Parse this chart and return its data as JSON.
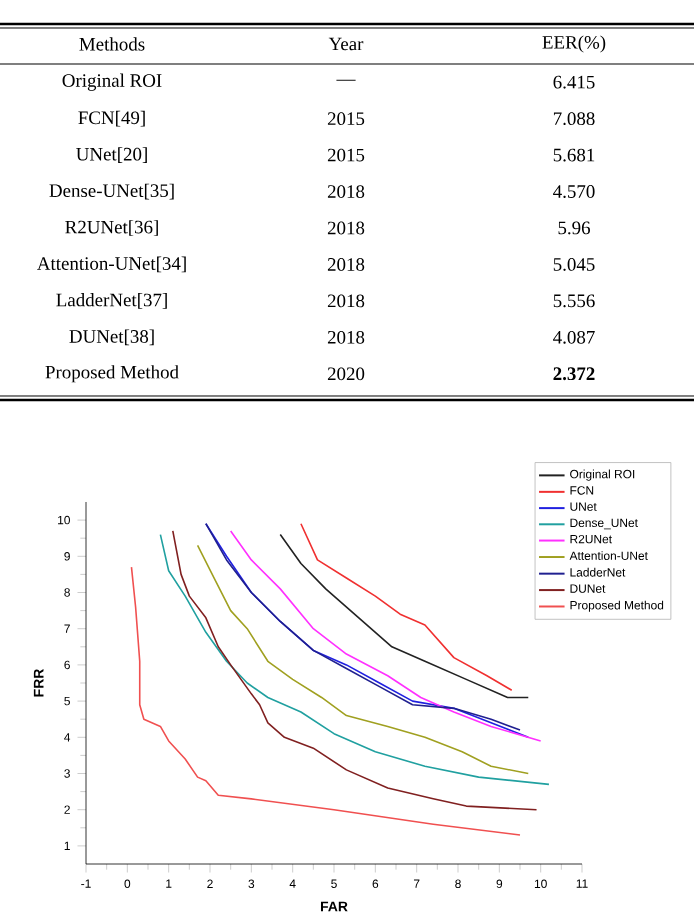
{
  "chart_data": [
    {
      "type": "other",
      "xlabel": "Methods",
      "categories": [
        "Original ROI",
        "FCN[49]",
        "UNet[20]",
        "Dense-UNet[35]",
        "R2UNet[36]",
        "Attention-UNet[34]",
        "LadderNet[37]",
        "DUNet[38]",
        "Proposed Method"
      ],
      "series": [
        {
          "name": "Year",
          "values": [
            null,
            2015,
            2015,
            2018,
            2018,
            2018,
            2018,
            2018,
            2020
          ],
          "value_labels": [
            "—",
            "2015",
            "2015",
            "2018",
            "2018",
            "2018",
            "2018",
            "2018",
            "2020"
          ]
        },
        {
          "name": "EER(%)",
          "values": [
            6.415,
            7.088,
            5.681,
            4.57,
            5.96,
            5.045,
            5.556,
            4.087,
            2.372
          ],
          "value_labels": [
            "6.415",
            "7.088",
            "5.681",
            "4.570",
            "5.96",
            "5.045",
            "5.556",
            "4.087",
            "**2.372**"
          ]
        }
      ]
    },
    {
      "type": "line",
      "xlabel": "FAR",
      "ylabel": "FRR",
      "xlim": [
        -1,
        11
      ],
      "ylim": [
        0.5,
        10.5
      ],
      "xticks": [
        -1,
        0,
        1,
        2,
        3,
        4,
        5,
        6,
        7,
        8,
        9,
        10,
        11
      ],
      "yticks": [
        1,
        2,
        3,
        4,
        5,
        6,
        7,
        8,
        9,
        10
      ],
      "legend": "top right",
      "series": [
        {
          "name": "Original ROI",
          "color": "#222222",
          "x": [
            3.7,
            4.2,
            4.8,
            5.6,
            6.4,
            7.2,
            8.2,
            9.2,
            9.7
          ],
          "values": [
            9.6,
            8.8,
            8.1,
            7.3,
            6.5,
            6.1,
            5.6,
            5.1,
            5.1
          ]
        },
        {
          "name": "FCN",
          "color": "#f03030",
          "x": [
            4.2,
            4.6,
            5.3,
            6.0,
            6.6,
            7.2,
            7.9,
            8.7,
            9.3
          ],
          "values": [
            9.9,
            8.9,
            8.4,
            7.9,
            7.4,
            7.1,
            6.2,
            5.7,
            5.3
          ]
        },
        {
          "name": "UNet",
          "color": "#2020e0",
          "x": [
            1.9,
            2.4,
            3.0,
            3.7,
            4.5,
            5.3,
            6.1,
            6.9,
            7.9,
            8.8,
            9.7
          ],
          "values": [
            9.9,
            9.0,
            8.0,
            7.2,
            6.4,
            6.0,
            5.5,
            5.0,
            4.8,
            4.4,
            4.0
          ]
        },
        {
          "name": "Dense_UNet",
          "color": "#20a0a0",
          "x": [
            0.8,
            1.0,
            1.4,
            1.9,
            2.4,
            2.9,
            3.4,
            4.2,
            5.0,
            6.0,
            7.2,
            8.5,
            10.2
          ],
          "values": [
            9.6,
            8.6,
            7.9,
            6.9,
            6.1,
            5.5,
            5.1,
            4.7,
            4.1,
            3.6,
            3.2,
            2.9,
            2.7
          ]
        },
        {
          "name": "R2UNet",
          "color": "#ff30ff",
          "x": [
            2.5,
            3.0,
            3.7,
            4.5,
            5.3,
            6.3,
            7.1,
            7.9,
            8.8,
            10.0
          ],
          "values": [
            9.7,
            8.9,
            8.1,
            7.0,
            6.3,
            5.7,
            5.1,
            4.7,
            4.3,
            3.9
          ]
        },
        {
          "name": "Attention-UNet",
          "color": "#a0a020",
          "x": [
            1.7,
            2.1,
            2.5,
            2.9,
            3.4,
            4.0,
            4.7,
            5.3,
            6.3,
            7.2,
            8.1,
            8.8,
            9.7
          ],
          "values": [
            9.3,
            8.4,
            7.5,
            7.0,
            6.1,
            5.6,
            5.1,
            4.6,
            4.3,
            4.0,
            3.6,
            3.2,
            3.0
          ]
        },
        {
          "name": "LadderNet",
          "color": "#202090",
          "x": [
            1.9,
            2.4,
            3.0,
            3.7,
            4.5,
            5.3,
            6.1,
            6.9,
            7.9,
            8.8,
            9.5
          ],
          "values": [
            9.9,
            8.9,
            8.0,
            7.2,
            6.4,
            5.9,
            5.4,
            4.9,
            4.8,
            4.5,
            4.2
          ]
        },
        {
          "name": "DUNet",
          "color": "#802020",
          "x": [
            1.1,
            1.3,
            1.5,
            1.9,
            2.2,
            2.5,
            3.0,
            3.2,
            3.4,
            3.8,
            4.5,
            5.3,
            6.3,
            7.4,
            8.2,
            9.9
          ],
          "values": [
            9.7,
            8.5,
            7.9,
            7.3,
            6.5,
            6.0,
            5.2,
            4.9,
            4.4,
            4.0,
            3.7,
            3.1,
            2.6,
            2.3,
            2.1,
            2.0
          ]
        },
        {
          "name": "Proposed Method",
          "color": "#f05050",
          "x": [
            0.1,
            0.2,
            0.3,
            0.3,
            0.4,
            0.8,
            1.0,
            1.4,
            1.7,
            1.9,
            2.2,
            3.0,
            5.0,
            7.4,
            9.5
          ],
          "values": [
            8.7,
            7.6,
            6.1,
            4.9,
            4.5,
            4.3,
            3.9,
            3.4,
            2.9,
            2.8,
            2.4,
            2.3,
            2.0,
            1.6,
            1.3
          ]
        }
      ]
    }
  ]
}
